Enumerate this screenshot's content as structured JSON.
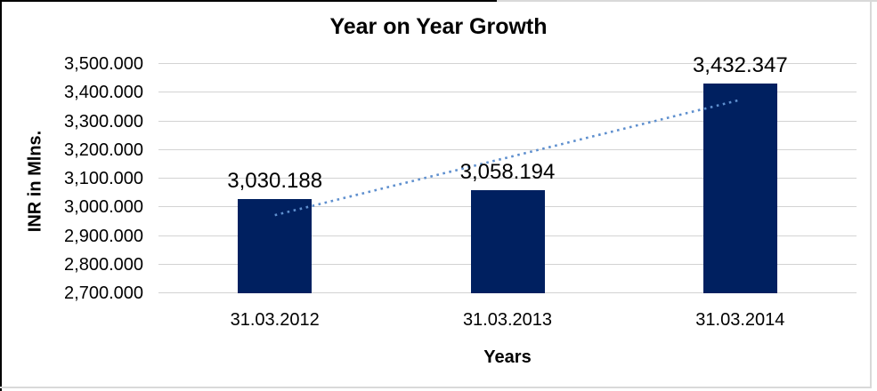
{
  "chart_data": {
    "type": "bar",
    "title": "Year on Year Growth",
    "xlabel": "Years",
    "ylabel": "INR in Mlns.",
    "categories": [
      "31.03.2012",
      "31.03.2013",
      "31.03.2014"
    ],
    "values": [
      3030.188,
      3058.194,
      3432.347
    ],
    "data_labels": [
      "3,030.188",
      "3,058.194",
      "3,432.347"
    ],
    "ylim": [
      2700,
      3500
    ],
    "y_tick_step": 100,
    "y_ticks": [
      {
        "value": 3500,
        "label": "3,500.000"
      },
      {
        "value": 3400,
        "label": "3,400.000"
      },
      {
        "value": 3300,
        "label": "3,300.000"
      },
      {
        "value": 3200,
        "label": "3,200.000"
      },
      {
        "value": 3100,
        "label": "3,100.000"
      },
      {
        "value": 3000,
        "label": "3,000.000"
      },
      {
        "value": 2900,
        "label": "2,900.000"
      },
      {
        "value": 2800,
        "label": "2,800.000"
      },
      {
        "value": 2700,
        "label": "2,700.000"
      }
    ],
    "grid": "horizontal",
    "legend": "none",
    "bar_color": "#002060",
    "gridline_color": "#d3d3d3",
    "trendline": {
      "type": "linear",
      "style": "dotted",
      "color": "#5e8fce",
      "start_value": 2972.5,
      "end_value": 3374.7
    }
  }
}
